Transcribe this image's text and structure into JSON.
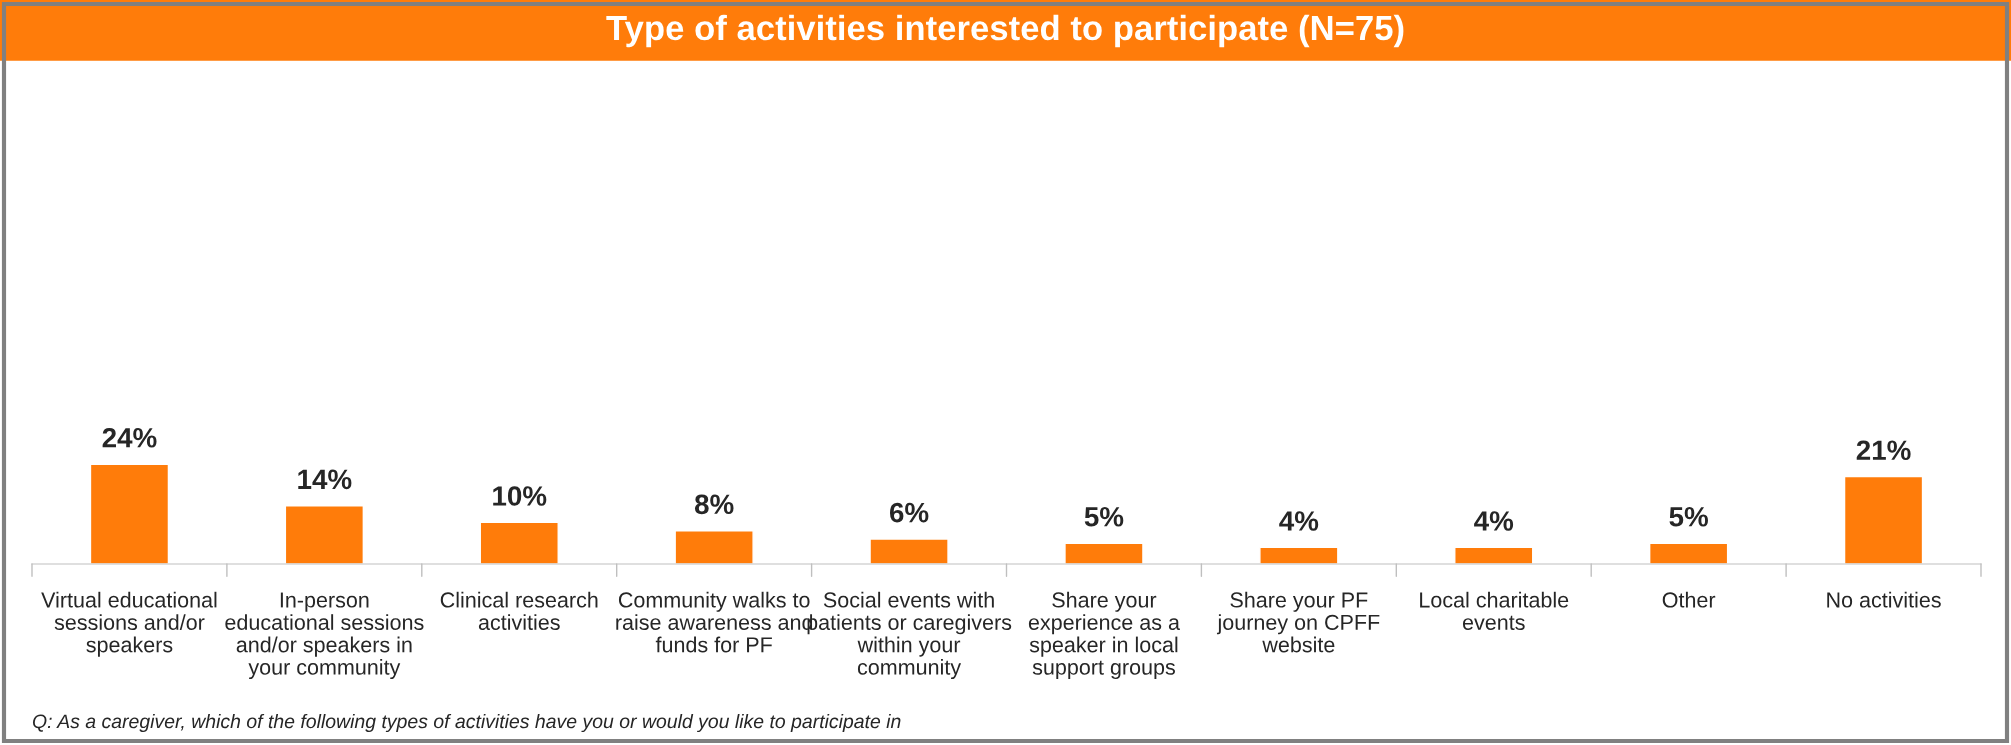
{
  "chart_data": {
    "type": "bar",
    "title": "Type of activities interested to participate (N=75)",
    "categories": [
      "Virtual educational\nsessions and/or\nspeakers",
      "In-person\neducational sessions\nand/or speakers in\nyour community",
      "Clinical research\nactivities",
      "Community walks to\nraise awareness and\nfunds for PF",
      "Social events with\npatients or caregivers\nwithin your\ncommunity",
      "Share your\nexperience as a\nspeaker in local\nsupport groups",
      "Share your PF\njourney on CPFF\nwebsite",
      "Local charitable\nevents",
      "Other",
      "No activities"
    ],
    "values": [
      24,
      14,
      10,
      8,
      6,
      5,
      4,
      4,
      5,
      21
    ],
    "value_labels": [
      "24%",
      "14%",
      "10%",
      "8%",
      "6%",
      "5%",
      "4%",
      "4%",
      "5%",
      "21%"
    ],
    "color": "#ff7c0a",
    "tick_labels": "x",
    "annotations": [
      "Q: As a caregiver, which of the following types of activities have you or would you like to participate in"
    ]
  }
}
